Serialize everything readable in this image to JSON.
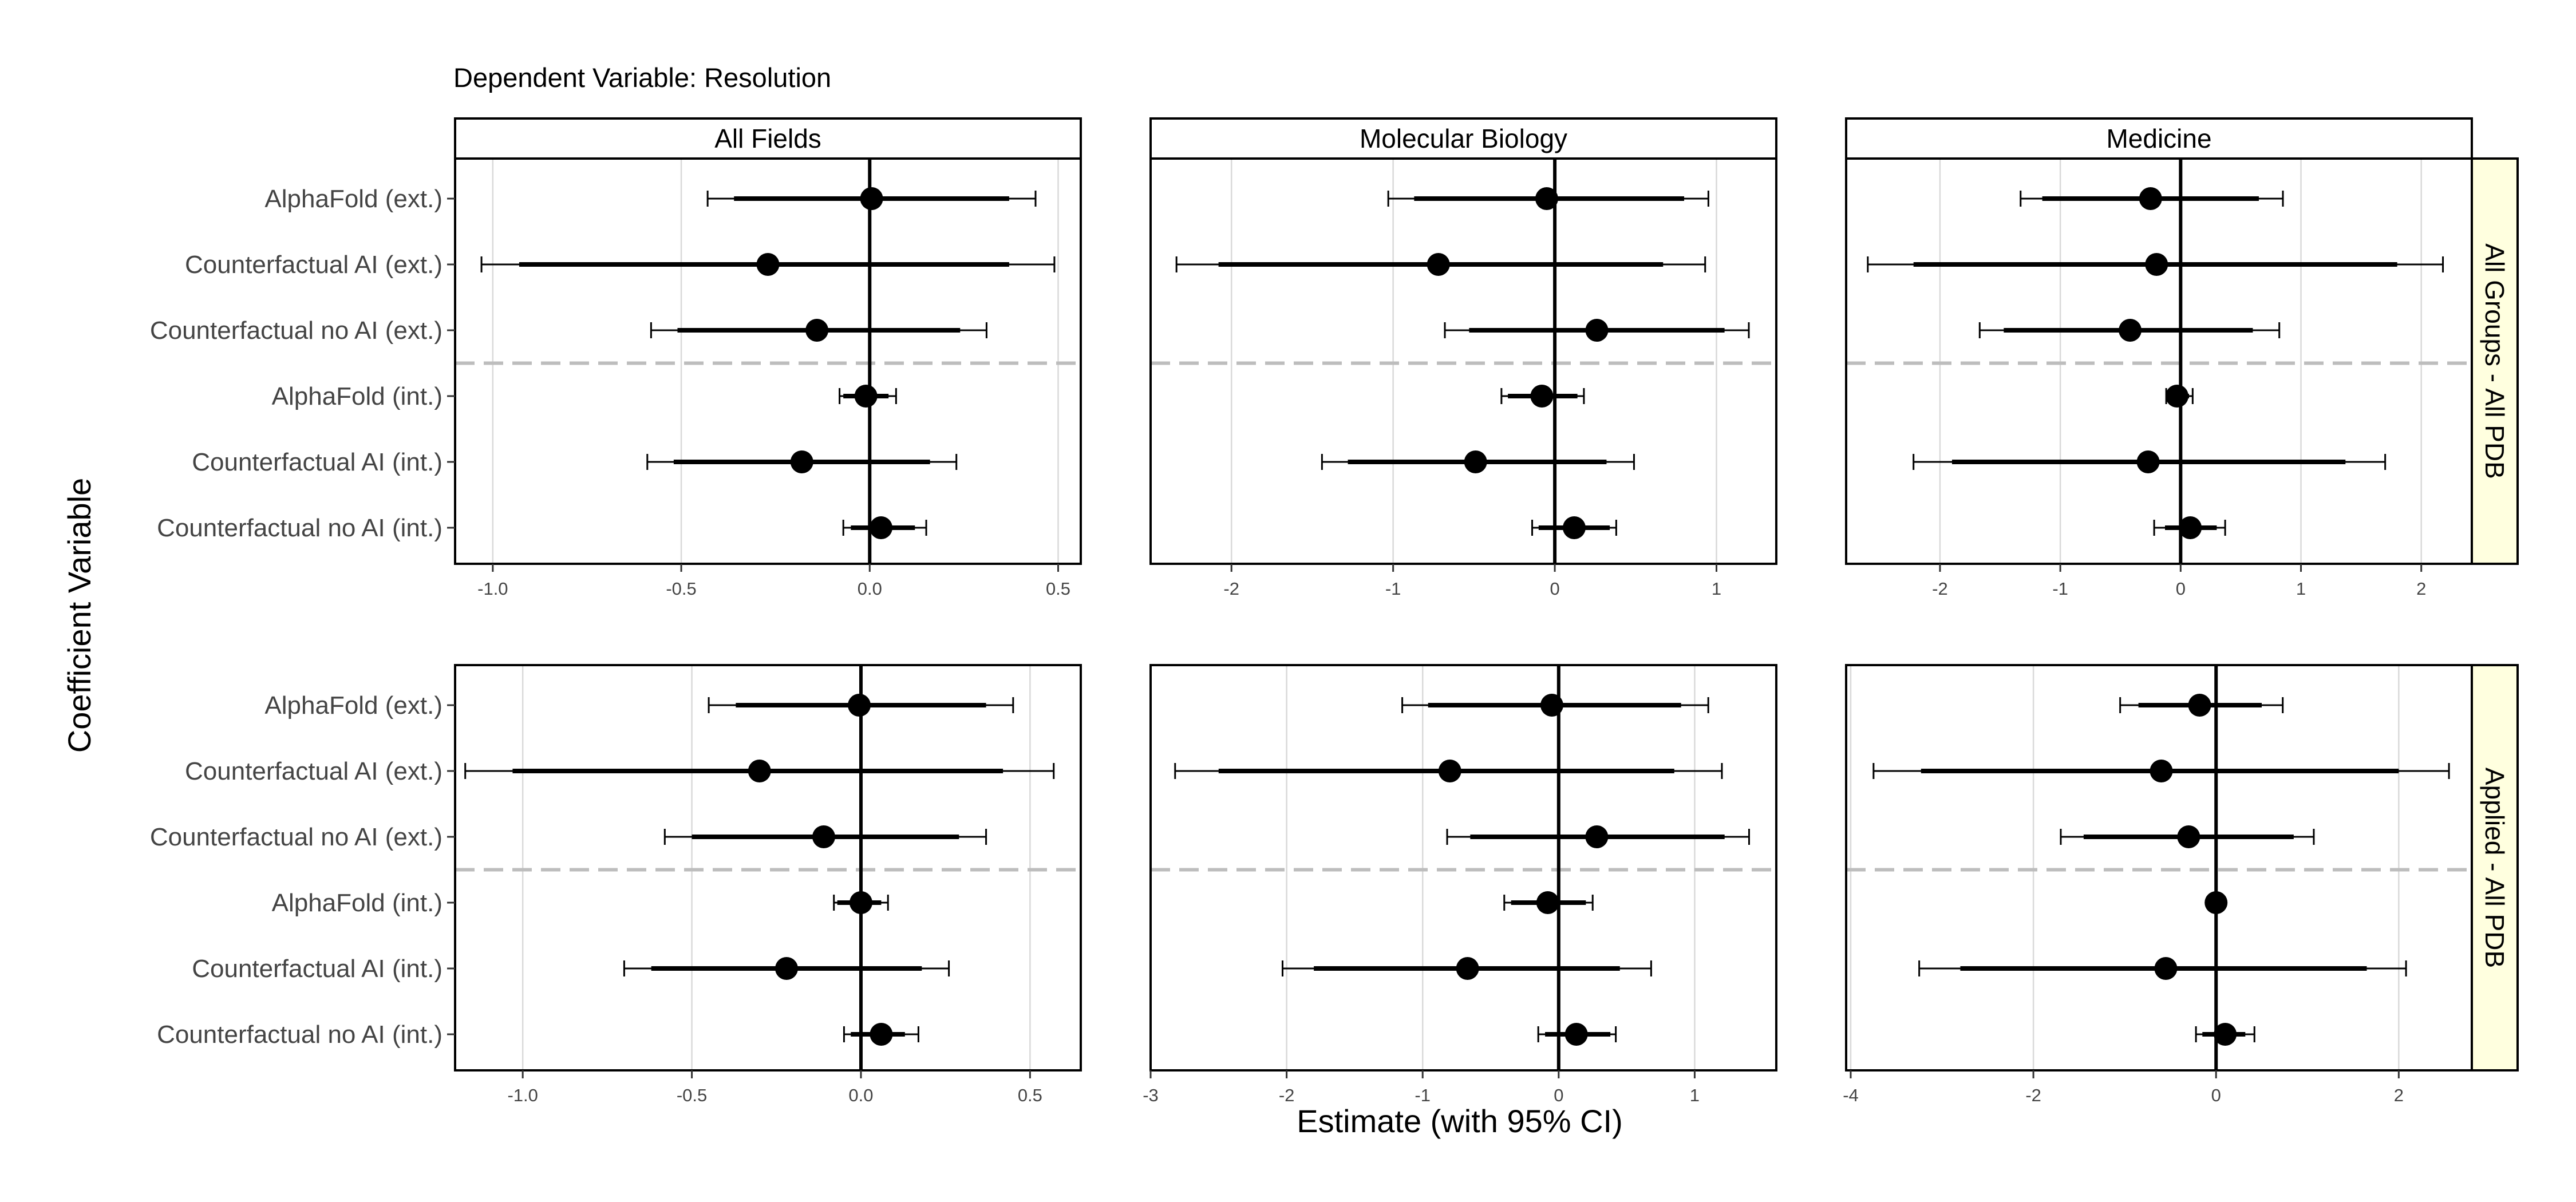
{
  "figure": {
    "title": "Dependent Variable: Resolution",
    "xlabel": "Estimate (with 95% CI)",
    "ylabel": "Coefficient Variable"
  },
  "chart_data": {
    "type": "coefficient-plot",
    "columns": [
      "All Fields",
      "Molecular Biology",
      "Medicine"
    ],
    "rows": [
      "All Groups - All PDB",
      "Applied - All PDB"
    ],
    "categories": [
      "AlphaFold (ext.)",
      "Counterfactual AI (ext.)",
      "Counterfactual no AI (ext.)",
      "AlphaFold (int.)",
      "Counterfactual AI (int.)",
      "Counterfactual no AI (int.)"
    ],
    "separator_between": [
      "Counterfactual no AI (ext.)",
      "AlphaFold (int.)"
    ],
    "grid": true,
    "reference_line_x": 0,
    "panels": [
      {
        "row": "All Groups - All PDB",
        "column": "All Fields",
        "xlim": [
          -1.1,
          0.56
        ],
        "xticks": [
          -1.0,
          -0.5,
          0.0,
          0.5
        ],
        "xtick_labels": [
          "-1.0",
          "-0.5",
          "0.0",
          "0.5"
        ],
        "points": [
          {
            "estimate": 0.005,
            "ci90": [
              -0.36,
              0.37
            ],
            "ci95": [
              -0.43,
              0.44
            ]
          },
          {
            "estimate": -0.27,
            "ci90": [
              -0.93,
              0.37
            ],
            "ci95": [
              -1.03,
              0.49
            ]
          },
          {
            "estimate": -0.14,
            "ci90": [
              -0.51,
              0.24
            ],
            "ci95": [
              -0.58,
              0.31
            ]
          },
          {
            "estimate": -0.01,
            "ci90": [
              -0.07,
              0.05
            ],
            "ci95": [
              -0.08,
              0.07
            ]
          },
          {
            "estimate": -0.18,
            "ci90": [
              -0.52,
              0.16
            ],
            "ci95": [
              -0.59,
              0.23
            ]
          },
          {
            "estimate": 0.03,
            "ci90": [
              -0.05,
              0.12
            ],
            "ci95": [
              -0.07,
              0.15
            ]
          }
        ]
      },
      {
        "row": "All Groups - All PDB",
        "column": "Molecular Biology",
        "xlim": [
          -2.5,
          1.37
        ],
        "xticks": [
          -2,
          -1,
          0,
          1
        ],
        "xtick_labels": [
          "-2",
          "-1",
          "0",
          "1"
        ],
        "points": [
          {
            "estimate": -0.05,
            "ci90": [
              -0.87,
              0.8
            ],
            "ci95": [
              -1.03,
              0.95
            ]
          },
          {
            "estimate": -0.72,
            "ci90": [
              -2.08,
              0.67
            ],
            "ci95": [
              -2.34,
              0.93
            ]
          },
          {
            "estimate": 0.26,
            "ci90": [
              -0.53,
              1.05
            ],
            "ci95": [
              -0.68,
              1.2
            ]
          },
          {
            "estimate": -0.08,
            "ci90": [
              -0.29,
              0.14
            ],
            "ci95": [
              -0.33,
              0.18
            ]
          },
          {
            "estimate": -0.49,
            "ci90": [
              -1.28,
              0.32
            ],
            "ci95": [
              -1.44,
              0.49
            ]
          },
          {
            "estimate": 0.12,
            "ci90": [
              -0.1,
              0.34
            ],
            "ci95": [
              -0.14,
              0.38
            ]
          }
        ]
      },
      {
        "row": "All Groups - All PDB",
        "column": "Medicine",
        "xlim": [
          -2.78,
          2.42
        ],
        "xticks": [
          -2,
          -1,
          0,
          1,
          2
        ],
        "xtick_labels": [
          "-2",
          "-1",
          "0",
          "1",
          "2"
        ],
        "points": [
          {
            "estimate": -0.25,
            "ci90": [
              -1.15,
              0.65
            ],
            "ci95": [
              -1.33,
              0.85
            ]
          },
          {
            "estimate": -0.2,
            "ci90": [
              -2.22,
              1.8
            ],
            "ci95": [
              -2.6,
              2.18
            ]
          },
          {
            "estimate": -0.42,
            "ci90": [
              -1.47,
              0.6
            ],
            "ci95": [
              -1.67,
              0.82
            ]
          },
          {
            "estimate": -0.03,
            "ci90": [
              -0.09,
              0.07
            ],
            "ci95": [
              -0.12,
              0.1
            ]
          },
          {
            "estimate": -0.27,
            "ci90": [
              -1.9,
              1.37
            ],
            "ci95": [
              -2.22,
              1.7
            ]
          },
          {
            "estimate": 0.08,
            "ci90": [
              -0.13,
              0.3
            ],
            "ci95": [
              -0.22,
              0.37
            ]
          }
        ]
      },
      {
        "row": "Applied - All PDB",
        "column": "All Fields",
        "xlim": [
          -1.2,
          0.65
        ],
        "xticks": [
          -1.0,
          -0.5,
          0.0,
          0.5
        ],
        "xtick_labels": [
          "-1.0",
          "-0.5",
          "0.0",
          "0.5"
        ],
        "points": [
          {
            "estimate": -0.005,
            "ci90": [
              -0.37,
              0.37
            ],
            "ci95": [
              -0.45,
              0.45
            ]
          },
          {
            "estimate": -0.3,
            "ci90": [
              -1.03,
              0.42
            ],
            "ci95": [
              -1.17,
              0.57
            ]
          },
          {
            "estimate": -0.11,
            "ci90": [
              -0.5,
              0.29
            ],
            "ci95": [
              -0.58,
              0.37
            ]
          },
          {
            "estimate": 0.0,
            "ci90": [
              -0.07,
              0.06
            ],
            "ci95": [
              -0.08,
              0.08
            ]
          },
          {
            "estimate": -0.22,
            "ci90": [
              -0.62,
              0.18
            ],
            "ci95": [
              -0.7,
              0.26
            ]
          },
          {
            "estimate": 0.06,
            "ci90": [
              -0.03,
              0.13
            ],
            "ci95": [
              -0.05,
              0.17
            ]
          }
        ]
      },
      {
        "row": "Applied - All PDB",
        "column": "Molecular Biology",
        "xlim": [
          -3.0,
          1.6
        ],
        "xticks": [
          -3,
          -2,
          -1,
          0,
          1
        ],
        "xtick_labels": [
          "-3",
          "-2",
          "-1",
          "0",
          "1"
        ],
        "points": [
          {
            "estimate": -0.05,
            "ci90": [
              -0.96,
              0.9
            ],
            "ci95": [
              -1.15,
              1.1
            ]
          },
          {
            "estimate": -0.8,
            "ci90": [
              -2.5,
              0.85
            ],
            "ci95": [
              -2.82,
              1.2
            ]
          },
          {
            "estimate": 0.28,
            "ci90": [
              -0.65,
              1.22
            ],
            "ci95": [
              -0.82,
              1.4
            ]
          },
          {
            "estimate": -0.08,
            "ci90": [
              -0.35,
              0.2
            ],
            "ci95": [
              -0.4,
              0.25
            ]
          },
          {
            "estimate": -0.67,
            "ci90": [
              -1.8,
              0.45
            ],
            "ci95": [
              -2.03,
              0.68
            ]
          },
          {
            "estimate": 0.13,
            "ci90": [
              -0.1,
              0.38
            ],
            "ci95": [
              -0.15,
              0.42
            ]
          }
        ]
      },
      {
        "row": "Applied - All PDB",
        "column": "Medicine",
        "xlim": [
          -4.05,
          2.8
        ],
        "xticks": [
          -4,
          -2,
          0,
          2
        ],
        "xtick_labels": [
          "-4",
          "-2",
          "0",
          "2"
        ],
        "points": [
          {
            "estimate": -0.18,
            "ci90": [
              -0.85,
              0.5
            ],
            "ci95": [
              -1.05,
              0.73
            ]
          },
          {
            "estimate": -0.6,
            "ci90": [
              -3.23,
              2.0
            ],
            "ci95": [
              -3.75,
              2.55
            ]
          },
          {
            "estimate": -0.3,
            "ci90": [
              -1.45,
              0.85
            ],
            "ci95": [
              -1.7,
              1.07
            ]
          },
          {
            "estimate": 0.0,
            "ci90": [
              -0.02,
              0.02
            ],
            "ci95": [
              -0.03,
              0.03
            ]
          },
          {
            "estimate": -0.55,
            "ci90": [
              -2.8,
              1.65
            ],
            "ci95": [
              -3.25,
              2.08
            ]
          },
          {
            "estimate": 0.1,
            "ci90": [
              -0.15,
              0.32
            ],
            "ci95": [
              -0.22,
              0.42
            ]
          }
        ]
      }
    ]
  }
}
